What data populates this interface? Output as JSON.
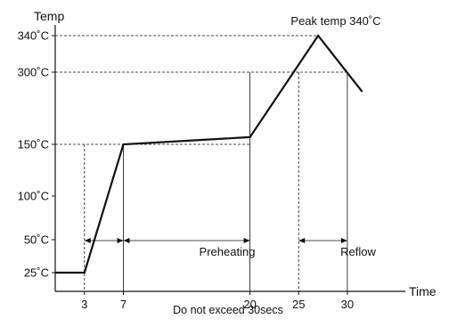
{
  "chart_data": {
    "type": "line",
    "ylabel": "Temp",
    "xlabel": "Time",
    "x_ticks": [
      3,
      7,
      20,
      25,
      30
    ],
    "y_ticks": [
      {
        "value": 25,
        "label": "25˚C"
      },
      {
        "value": 50,
        "label": "50˚C"
      },
      {
        "value": 100,
        "label": "100˚C"
      },
      {
        "value": 150,
        "label": "150˚C"
      },
      {
        "value": 300,
        "label": "300˚C"
      },
      {
        "value": 340,
        "label": "340˚C"
      }
    ],
    "series": [
      {
        "points": [
          {
            "x": 0,
            "y": 25
          },
          {
            "x": 3,
            "y": 25
          },
          {
            "x": 7,
            "y": 150
          },
          {
            "x": 20,
            "y": 165
          },
          {
            "x": 27,
            "y": 340
          },
          {
            "x": 31.5,
            "y": 260
          }
        ]
      }
    ],
    "annotations": {
      "peak": "Peak temp 340˚C",
      "preheating": "Preheating",
      "reflow": "Reflow",
      "note": "Do not exceed 30secs"
    }
  }
}
